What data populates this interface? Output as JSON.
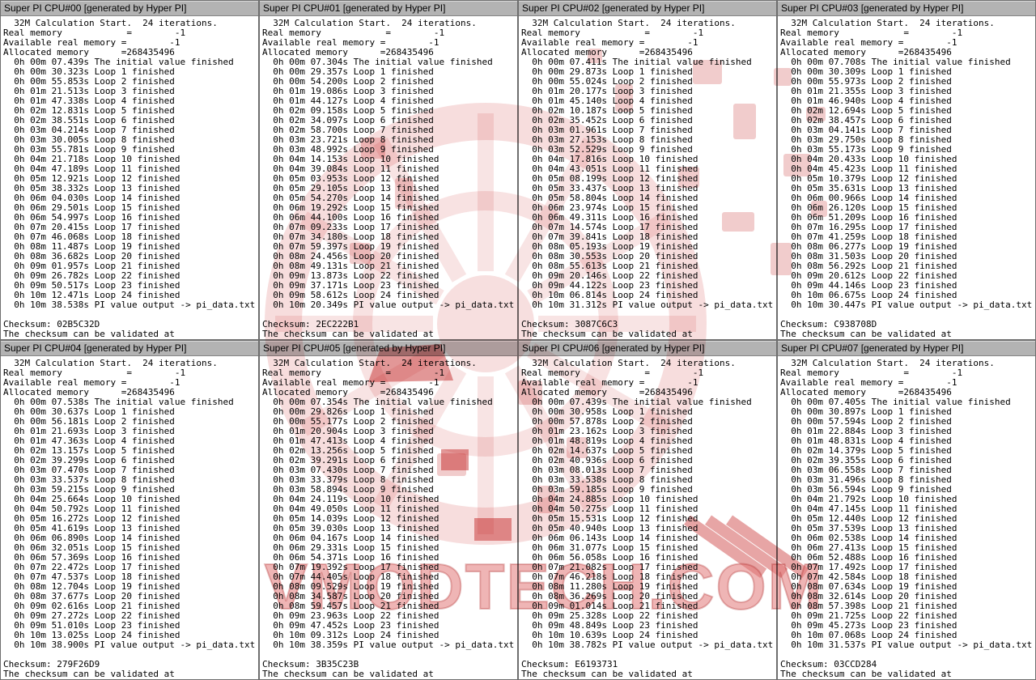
{
  "watermark": {
    "text": "VMODTECH.COM",
    "fill_color": "#e27878",
    "emblem_color": "#c81e1e"
  },
  "windows": [
    {
      "title": "Super PI CPU#00 [generated by Hyper PI]",
      "checksum": "02B5C32D",
      "lines": [
        "  32M Calculation Start.  24 iterations.",
        "Real memory            =        -1",
        "Available real memory =        -1",
        "Allocated memory      =268435496",
        "  0h 00m 07.439s The initial value finished",
        "  0h 00m 30.323s Loop 1 finished",
        "  0h 00m 55.853s Loop 2 finished",
        "  0h 01m 21.513s Loop 3 finished",
        "  0h 01m 47.338s Loop 4 finished",
        "  0h 02m 12.831s Loop 5 finished",
        "  0h 02m 38.551s Loop 6 finished",
        "  0h 03m 04.214s Loop 7 finished",
        "  0h 03m 30.005s Loop 8 finished",
        "  0h 03m 55.781s Loop 9 finished",
        "  0h 04m 21.718s Loop 10 finished",
        "  0h 04m 47.189s Loop 11 finished",
        "  0h 05m 12.921s Loop 12 finished",
        "  0h 05m 38.332s Loop 13 finished",
        "  0h 06m 04.030s Loop 14 finished",
        "  0h 06m 29.501s Loop 15 finished",
        "  0h 06m 54.997s Loop 16 finished",
        "  0h 07m 20.415s Loop 17 finished",
        "  0h 07m 46.068s Loop 18 finished",
        "  0h 08m 11.487s Loop 19 finished",
        "  0h 08m 36.682s Loop 20 finished",
        "  0h 09m 01.957s Loop 21 finished",
        "  0h 09m 26.782s Loop 22 finished",
        "  0h 09m 50.517s Loop 23 finished",
        "  0h 10m 12.471s Loop 24 finished",
        "  0h 10m 38.538s PI value output -> pi_data.txt",
        "",
        "Checksum: 02B5C32D",
        "The checksum can be validated at"
      ]
    },
    {
      "title": "Super PI CPU#01 [generated by Hyper PI]",
      "checksum": "2EC222B1",
      "lines": [
        "  32M Calculation Start.  24 iterations.",
        "Real memory            =        -1",
        "Available real memory =        -1",
        "Allocated memory      =268435496",
        "  0h 00m 07.304s The initial value finished",
        "  0h 00m 29.357s Loop 1 finished",
        "  0h 00m 54.200s Loop 2 finished",
        "  0h 01m 19.086s Loop 3 finished",
        "  0h 01m 44.127s Loop 4 finished",
        "  0h 02m 09.158s Loop 5 finished",
        "  0h 02m 34.097s Loop 6 finished",
        "  0h 02m 58.700s Loop 7 finished",
        "  0h 03m 23.721s Loop 8 finished",
        "  0h 03m 48.992s Loop 9 finished",
        "  0h 04m 14.153s Loop 10 finished",
        "  0h 04m 39.084s Loop 11 finished",
        "  0h 05m 03.953s Loop 12 finished",
        "  0h 05m 29.105s Loop 13 finished",
        "  0h 05m 54.270s Loop 14 finished",
        "  0h 06m 19.292s Loop 15 finished",
        "  0h 06m 44.100s Loop 16 finished",
        "  0h 07m 09.233s Loop 17 finished",
        "  0h 07m 34.180s Loop 18 finished",
        "  0h 07m 59.397s Loop 19 finished",
        "  0h 08m 24.456s Loop 20 finished",
        "  0h 08m 49.131s Loop 21 finished",
        "  0h 09m 13.873s Loop 22 finished",
        "  0h 09m 37.171s Loop 23 finished",
        "  0h 09m 58.612s Loop 24 finished",
        "  0h 10m 20.349s PI value output -> pi_data.txt",
        "",
        "Checksum: 2EC222B1",
        "The checksum can be validated at"
      ]
    },
    {
      "title": "Super PI CPU#02 [generated by Hyper PI]",
      "checksum": "3087C6C3",
      "lines": [
        "  32M Calculation Start.  24 iterations.",
        "Real memory            =        -1",
        "Available real memory =        -1",
        "Allocated memory      =268435496",
        "  0h 00m 07.411s The initial value finished",
        "  0h 00m 29.873s Loop 1 finished",
        "  0h 00m 55.024s Loop 2 finished",
        "  0h 01m 20.177s Loop 3 finished",
        "  0h 01m 45.140s Loop 4 finished",
        "  0h 02m 10.187s Loop 5 finished",
        "  0h 02m 35.452s Loop 6 finished",
        "  0h 03m 01.961s Loop 7 finished",
        "  0h 03m 27.153s Loop 8 finished",
        "  0h 03m 52.529s Loop 9 finished",
        "  0h 04m 17.816s Loop 10 finished",
        "  0h 04m 43.051s Loop 11 finished",
        "  0h 05m 08.199s Loop 12 finished",
        "  0h 05m 33.437s Loop 13 finished",
        "  0h 05m 58.804s Loop 14 finished",
        "  0h 06m 23.974s Loop 15 finished",
        "  0h 06m 49.311s Loop 16 finished",
        "  0h 07m 14.574s Loop 17 finished",
        "  0h 07m 39.841s Loop 18 finished",
        "  0h 08m 05.193s Loop 19 finished",
        "  0h 08m 30.553s Loop 20 finished",
        "  0h 08m 55.613s Loop 21 finished",
        "  0h 09m 20.146s Loop 22 finished",
        "  0h 09m 44.122s Loop 23 finished",
        "  0h 10m 06.814s Loop 24 finished",
        "  0h 10m 31.312s PI value output -> pi_data.txt",
        "",
        "Checksum: 3087C6C3",
        "The checksum can be validated at"
      ]
    },
    {
      "title": "Super PI CPU#03 [generated by Hyper PI]",
      "checksum": "C938708D",
      "lines": [
        "  32M Calculation Start.  24 iterations.",
        "Real memory            =        -1",
        "Available real memory =        -1",
        "Allocated memory      =268435496",
        "  0h 00m 07.708s The initial value finished",
        "  0h 00m 30.309s Loop 1 finished",
        "  0h 00m 55.973s Loop 2 finished",
        "  0h 01m 21.355s Loop 3 finished",
        "  0h 01m 46.940s Loop 4 finished",
        "  0h 02m 12.694s Loop 5 finished",
        "  0h 02m 38.457s Loop 6 finished",
        "  0h 03m 04.141s Loop 7 finished",
        "  0h 03m 29.750s Loop 8 finished",
        "  0h 03m 55.173s Loop 9 finished",
        "  0h 04m 20.433s Loop 10 finished",
        "  0h 04m 45.423s Loop 11 finished",
        "  0h 05m 10.379s Loop 12 finished",
        "  0h 05m 35.631s Loop 13 finished",
        "  0h 06m 00.966s Loop 14 finished",
        "  0h 06m 26.120s Loop 15 finished",
        "  0h 06m 51.209s Loop 16 finished",
        "  0h 07m 16.295s Loop 17 finished",
        "  0h 07m 41.259s Loop 18 finished",
        "  0h 08m 06.277s Loop 19 finished",
        "  0h 08m 31.503s Loop 20 finished",
        "  0h 08m 56.292s Loop 21 finished",
        "  0h 09m 20.612s Loop 22 finished",
        "  0h 09m 44.146s Loop 23 finished",
        "  0h 10m 06.675s Loop 24 finished",
        "  0h 10m 30.447s PI value output -> pi_data.txt",
        "",
        "Checksum: C938708D",
        "The checksum can be validated at"
      ]
    },
    {
      "title": "Super PI CPU#04 [generated by Hyper PI]",
      "checksum": "279F26D9",
      "lines": [
        "  32M Calculation Start.  24 iterations.",
        "Real memory            =        -1",
        "Available real memory =        -1",
        "Allocated memory      =268435496",
        "  0h 00m 07.538s The initial value finished",
        "  0h 00m 30.637s Loop 1 finished",
        "  0h 00m 56.181s Loop 2 finished",
        "  0h 01m 21.693s Loop 3 finished",
        "  0h 01m 47.363s Loop 4 finished",
        "  0h 02m 13.157s Loop 5 finished",
        "  0h 02m 39.299s Loop 6 finished",
        "  0h 03m 07.470s Loop 7 finished",
        "  0h 03m 33.537s Loop 8 finished",
        "  0h 03m 59.215s Loop 9 finished",
        "  0h 04m 25.664s Loop 10 finished",
        "  0h 04m 50.792s Loop 11 finished",
        "  0h 05m 16.272s Loop 12 finished",
        "  0h 05m 41.619s Loop 13 finished",
        "  0h 06m 06.890s Loop 14 finished",
        "  0h 06m 32.051s Loop 15 finished",
        "  0h 06m 57.369s Loop 16 finished",
        "  0h 07m 22.472s Loop 17 finished",
        "  0h 07m 47.537s Loop 18 finished",
        "  0h 08m 12.704s Loop 19 finished",
        "  0h 08m 37.677s Loop 20 finished",
        "  0h 09m 02.616s Loop 21 finished",
        "  0h 09m 27.272s Loop 22 finished",
        "  0h 09m 51.010s Loop 23 finished",
        "  0h 10m 13.025s Loop 24 finished",
        "  0h 10m 38.900s PI value output -> pi_data.txt",
        "",
        "Checksum: 279F26D9",
        "The checksum can be validated at"
      ]
    },
    {
      "title": "Super PI CPU#05 [generated by Hyper PI]",
      "checksum": "3B35C23B",
      "lines": [
        "  32M Calculation Start.  24 iterations.",
        "Real memory            =        -1",
        "Available real memory =        -1",
        "Allocated memory      =268435496",
        "  0h 00m 07.354s The initial value finished",
        "  0h 00m 29.826s Loop 1 finished",
        "  0h 00m 55.177s Loop 2 finished",
        "  0h 01m 20.904s Loop 3 finished",
        "  0h 01m 47.413s Loop 4 finished",
        "  0h 02m 13.256s Loop 5 finished",
        "  0h 02m 39.291s Loop 6 finished",
        "  0h 03m 07.430s Loop 7 finished",
        "  0h 03m 33.379s Loop 8 finished",
        "  0h 03m 58.894s Loop 9 finished",
        "  0h 04m 24.119s Loop 10 finished",
        "  0h 04m 49.050s Loop 11 finished",
        "  0h 05m 14.039s Loop 12 finished",
        "  0h 05m 39.030s Loop 13 finished",
        "  0h 06m 04.167s Loop 14 finished",
        "  0h 06m 29.331s Loop 15 finished",
        "  0h 06m 54.371s Loop 16 finished",
        "  0h 07m 19.392s Loop 17 finished",
        "  0h 07m 44.405s Loop 18 finished",
        "  0h 08m 09.529s Loop 19 finished",
        "  0h 08m 34.587s Loop 20 finished",
        "  0h 08m 59.457s Loop 21 finished",
        "  0h 09m 23.963s Loop 22 finished",
        "  0h 09m 47.452s Loop 23 finished",
        "  0h 10m 09.312s Loop 24 finished",
        "  0h 10m 38.359s PI value output -> pi_data.txt",
        "",
        "Checksum: 3B35C23B",
        "The checksum can be validated at"
      ]
    },
    {
      "title": "Super PI CPU#06 [generated by Hyper PI]",
      "checksum": "E6193731",
      "lines": [
        "  32M Calculation Start.  24 iterations.",
        "Real memory            =        -1",
        "Available real memory =        -1",
        "Allocated memory      =268435496",
        "  0h 00m 07.439s The initial value finished",
        "  0h 00m 30.958s Loop 1 finished",
        "  0h 00m 57.878s Loop 2 finished",
        "  0h 01m 23.162s Loop 3 finished",
        "  0h 01m 48.819s Loop 4 finished",
        "  0h 02m 14.637s Loop 5 finished",
        "  0h 02m 40.936s Loop 6 finished",
        "  0h 03m 08.013s Loop 7 finished",
        "  0h 03m 33.538s Loop 8 finished",
        "  0h 03m 59.185s Loop 9 finished",
        "  0h 04m 24.885s Loop 10 finished",
        "  0h 04m 50.275s Loop 11 finished",
        "  0h 05m 15.531s Loop 12 finished",
        "  0h 05m 40.940s Loop 13 finished",
        "  0h 06m 06.143s Loop 14 finished",
        "  0h 06m 31.077s Loop 15 finished",
        "  0h 06m 56.058s Loop 16 finished",
        "  0h 07m 21.082s Loop 17 finished",
        "  0h 07m 46.218s Loop 18 finished",
        "  0h 08m 11.280s Loop 19 finished",
        "  0h 08m 36.269s Loop 20 finished",
        "  0h 09m 01.014s Loop 21 finished",
        "  0h 09m 25.328s Loop 22 finished",
        "  0h 09m 48.849s Loop 23 finished",
        "  0h 10m 10.639s Loop 24 finished",
        "  0h 10m 38.782s PI value output -> pi_data.txt",
        "",
        "Checksum: E6193731",
        "The checksum can be validated at"
      ]
    },
    {
      "title": "Super PI CPU#07 [generated by Hyper PI]",
      "checksum": "03CCD284",
      "lines": [
        "  32M Calculation Start.  24 iterations.",
        "Real memory            =        -1",
        "Available real memory =        -1",
        "Allocated memory      =268435496",
        "  0h 00m 07.405s The initial value finished",
        "  0h 00m 30.897s Loop 1 finished",
        "  0h 00m 57.594s Loop 2 finished",
        "  0h 01m 22.884s Loop 3 finished",
        "  0h 01m 48.831s Loop 4 finished",
        "  0h 02m 14.379s Loop 5 finished",
        "  0h 02m 39.355s Loop 6 finished",
        "  0h 03m 06.558s Loop 7 finished",
        "  0h 03m 31.496s Loop 8 finished",
        "  0h 03m 56.594s Loop 9 finished",
        "  0h 04m 21.792s Loop 10 finished",
        "  0h 04m 47.145s Loop 11 finished",
        "  0h 05m 12.440s Loop 12 finished",
        "  0h 05m 37.539s Loop 13 finished",
        "  0h 06m 02.538s Loop 14 finished",
        "  0h 06m 27.413s Loop 15 finished",
        "  0h 06m 52.488s Loop 16 finished",
        "  0h 07m 17.492s Loop 17 finished",
        "  0h 07m 42.584s Loop 18 finished",
        "  0h 08m 07.634s Loop 19 finished",
        "  0h 08m 32.614s Loop 20 finished",
        "  0h 08m 57.398s Loop 21 finished",
        "  0h 09m 21.725s Loop 22 finished",
        "  0h 09m 45.273s Loop 23 finished",
        "  0h 10m 07.068s Loop 24 finished",
        "  0h 10m 31.537s PI value output -> pi_data.txt",
        "",
        "Checksum: 03CCD284",
        "The checksum can be validated at"
      ]
    }
  ]
}
